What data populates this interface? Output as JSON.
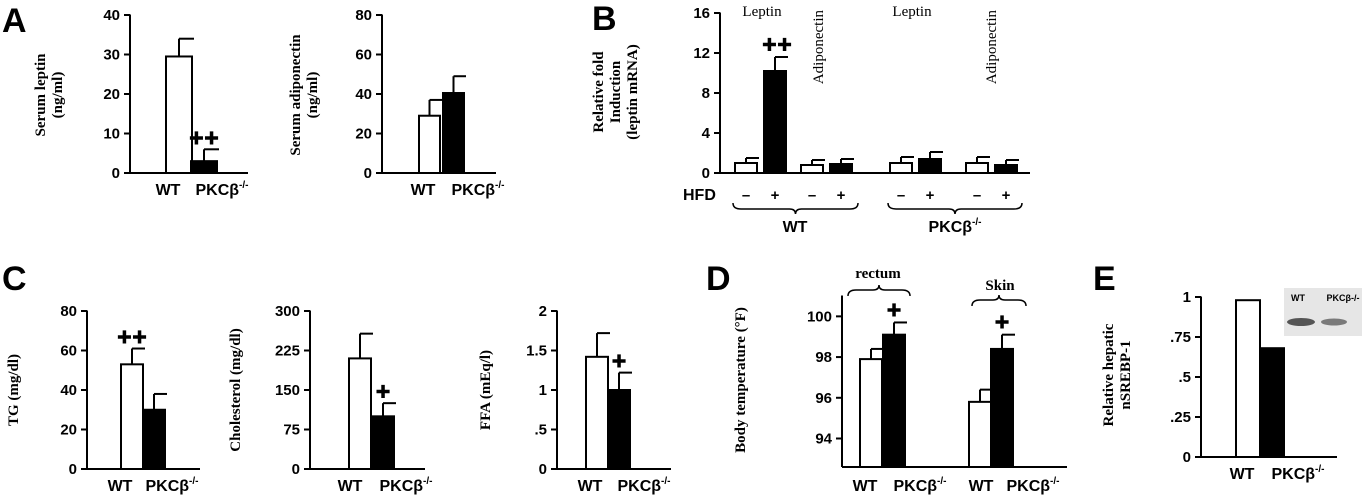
{
  "panels": {
    "A": "A",
    "B": "B",
    "C": "C",
    "D": "D",
    "E": "E"
  },
  "colors": {
    "wt": "#ffffff",
    "ko": "#000000",
    "stroke": "#000000"
  },
  "chart_data": [
    {
      "id": "leptin",
      "panel": "A",
      "type": "bar",
      "ylabel_lines": [
        "Serum leptin",
        "(ng/ml)"
      ],
      "ylim": [
        0,
        40
      ],
      "ticks": [
        "0",
        "10",
        "20",
        "30",
        "40"
      ],
      "categories": [
        "WT",
        "PKCβ-/-"
      ],
      "values": [
        29.5,
        3
      ],
      "errors": [
        4.5,
        3
      ],
      "sig": [
        "",
        "✚✚"
      ]
    },
    {
      "id": "adiponectin",
      "panel": "A",
      "type": "bar",
      "ylabel_lines": [
        "Serum adiponectin",
        "(ng/ml)"
      ],
      "ylim": [
        0,
        80
      ],
      "ticks": [
        "0",
        "20",
        "40",
        "60",
        "80"
      ],
      "categories": [
        "WT",
        "PKCβ-/-"
      ],
      "values": [
        29,
        40.5
      ],
      "errors": [
        8,
        8.5
      ],
      "sig": [
        "",
        ""
      ]
    },
    {
      "id": "mrna",
      "panel": "B",
      "type": "bar",
      "ylabel_lines": [
        "Relative fold",
        "Induction",
        "(leptin mRNA)"
      ],
      "ylim": [
        0,
        16
      ],
      "ticks": [
        "0",
        "4",
        "8",
        "12",
        "16"
      ],
      "group_labels": [
        "Leptin",
        "Adiponectin",
        "Leptin",
        "Adiponectin"
      ],
      "hfd_label": "HFD",
      "hfd_signs": [
        "–",
        "+"
      ],
      "genotypes": [
        "WT",
        "PKCβ-/-"
      ],
      "series": [
        {
          "values": [
            1.0,
            0.8,
            1.0,
            1.0
          ],
          "errors": [
            0.5,
            0.5,
            0.6,
            0.6
          ]
        },
        {
          "values": [
            10.2,
            0.9,
            1.4,
            0.8
          ],
          "errors": [
            1.4,
            0.5,
            0.7,
            0.5
          ]
        }
      ],
      "sig": [
        "",
        "✚✚",
        "",
        "",
        "",
        "",
        "",
        ""
      ]
    },
    {
      "id": "tg",
      "panel": "C",
      "type": "bar",
      "ylabel_lines": [
        "TG (mg/dl)"
      ],
      "ylim": [
        0,
        80
      ],
      "ticks": [
        "0",
        "20",
        "40",
        "60",
        "80"
      ],
      "categories": [
        "WT",
        "PKCβ-/-"
      ],
      "values": [
        53,
        30
      ],
      "errors": [
        8,
        8
      ],
      "sig": [
        "✚✚",
        ""
      ]
    },
    {
      "id": "cholesterol",
      "panel": "C",
      "type": "bar",
      "ylabel_lines": [
        "Cholesterol (mg/dl)"
      ],
      "ylim": [
        0,
        300
      ],
      "ticks": [
        "0",
        "75",
        "150",
        "225",
        "300"
      ],
      "categories": [
        "WT",
        "PKCβ-/-"
      ],
      "values": [
        210,
        100
      ],
      "errors": [
        47,
        25
      ],
      "sig": [
        "",
        "✚"
      ]
    },
    {
      "id": "ffa",
      "panel": "C",
      "type": "bar",
      "ylabel_lines": [
        "FFA (mEq/l)"
      ],
      "ylim": [
        0,
        2
      ],
      "ticks": [
        "0",
        ".5",
        "1",
        "1.5",
        "2"
      ],
      "categories": [
        "WT",
        "PKCβ-/-"
      ],
      "values": [
        1.42,
        1.0
      ],
      "errors": [
        0.3,
        0.22
      ],
      "sig": [
        "",
        "✚"
      ]
    },
    {
      "id": "temp",
      "panel": "D",
      "type": "bar",
      "ylabel_lines": [
        "Body temperature (°F)"
      ],
      "ylim": [
        92.6,
        101
      ],
      "ticks": [
        "94",
        "96",
        "98",
        "100"
      ],
      "tick_values": [
        94,
        96,
        98,
        100
      ],
      "group_labels": [
        "rectum",
        "Skin"
      ],
      "categories": [
        "WT",
        "PKCβ-/-",
        "WT",
        "PKCβ-/-"
      ],
      "values": [
        97.9,
        99.1,
        95.8,
        98.4
      ],
      "errors": [
        0.5,
        0.6,
        0.6,
        0.7
      ],
      "sig": [
        "",
        "✚",
        "",
        "✚"
      ]
    },
    {
      "id": "srebp",
      "panel": "E",
      "type": "bar",
      "ylabel_lines": [
        "Relative hepatic",
        "nSREBP-1"
      ],
      "ylim": [
        0,
        1
      ],
      "ticks": [
        "0",
        ".25",
        ".5",
        ".75",
        "1"
      ],
      "categories": [
        "WT",
        "PKCβ-/-"
      ],
      "values": [
        0.98,
        0.68
      ],
      "blot_labels": [
        "WT",
        "PKCβ-/-"
      ]
    }
  ]
}
